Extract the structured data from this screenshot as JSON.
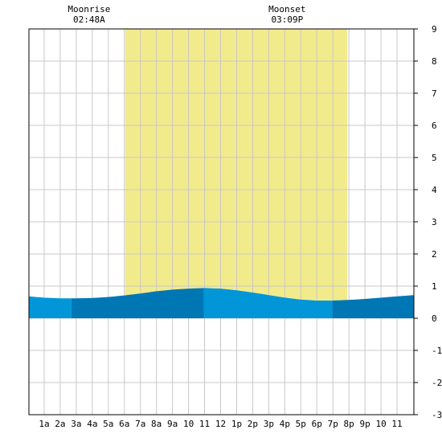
{
  "moon_events": [
    {
      "label": "Moonrise",
      "time": "02:48A",
      "hour": 2.8
    },
    {
      "label": "Moonset",
      "time": "03:09P",
      "hour": 15.15
    }
  ],
  "chart_data": {
    "type": "area",
    "title": "",
    "xlabel": "",
    "ylabel": "",
    "xlim": [
      -0.95,
      23.05
    ],
    "ylim": [
      -3,
      9
    ],
    "y_ticks": [
      "-3",
      "-2",
      "-1",
      "0",
      "1",
      "2",
      "3",
      "4",
      "5",
      "6",
      "7",
      "8",
      "9"
    ],
    "x_tick_labels": [
      "1a",
      "2a",
      "3a",
      "4a",
      "5a",
      "6a",
      "7a",
      "8a",
      "9a",
      "10",
      "11",
      "12",
      "1p",
      "2p",
      "3p",
      "4p",
      "5p",
      "6p",
      "7p",
      "8p",
      "9p",
      "10",
      "11"
    ],
    "grid": true,
    "daylight": {
      "start_hour": 5.05,
      "end_hour": 18.9
    },
    "tide_band_boundaries": [
      -0.95,
      1.7,
      9.95,
      17.97,
      23.05
    ],
    "series": [
      {
        "x": [
          -0.95,
          0,
          1,
          1.7,
          2,
          3,
          4,
          5,
          6,
          7,
          8,
          9,
          9.95,
          11,
          12,
          13,
          14,
          15,
          16,
          17,
          17.97,
          19,
          20,
          21,
          22,
          23.05
        ],
        "values": [
          0.68,
          0.64,
          0.62,
          0.62,
          0.62,
          0.63,
          0.66,
          0.71,
          0.77,
          0.84,
          0.89,
          0.92,
          0.94,
          0.92,
          0.87,
          0.8,
          0.72,
          0.64,
          0.58,
          0.55,
          0.55,
          0.57,
          0.6,
          0.64,
          0.68,
          0.72
        ]
      }
    ]
  },
  "colors": {
    "daylight": "#f2eb8c",
    "tide_light": "#0096d8",
    "tide_dark": "#0077b5",
    "grid": "#c8c8c8",
    "axis": "#000000"
  }
}
